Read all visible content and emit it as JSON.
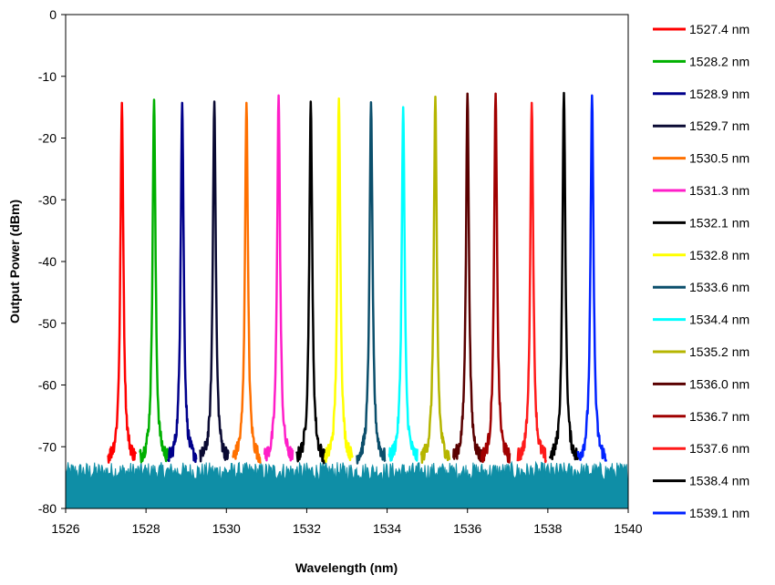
{
  "chart_data": {
    "type": "line",
    "title": "",
    "xlabel": "Wavelength (nm)",
    "ylabel": "Output Power (dBm)",
    "xlim": [
      1526,
      1540
    ],
    "ylim": [
      -80,
      0
    ],
    "x_ticks": [
      1526,
      1528,
      1530,
      1532,
      1534,
      1536,
      1538,
      1540
    ],
    "x_tick_labels": [
      "1526",
      "1528",
      "1530",
      "1532",
      "1534",
      "1536",
      "1538",
      "1540"
    ],
    "y_ticks": [
      0,
      -10,
      -20,
      -30,
      -40,
      -50,
      -60,
      -70,
      -80
    ],
    "y_tick_labels": [
      "0",
      "-10",
      "-20",
      "-30",
      "-40",
      "-50",
      "-60",
      "-70",
      "-80"
    ],
    "grid": false,
    "legend_position": "right",
    "noise_floor_dbm": -74,
    "noise_floor_color": "#0f8ea6",
    "series": [
      {
        "name": "1527.4 nm",
        "peak_wavelength": 1527.4,
        "peak_power": -14.3,
        "color": "#ff0000"
      },
      {
        "name": "1528.2 nm",
        "peak_wavelength": 1528.2,
        "peak_power": -13.8,
        "color": "#00b000"
      },
      {
        "name": "1528.9 nm",
        "peak_wavelength": 1528.9,
        "peak_power": -14.3,
        "color": "#00008b"
      },
      {
        "name": "1529.7 nm",
        "peak_wavelength": 1529.7,
        "peak_power": -14.1,
        "color": "#0a0a33"
      },
      {
        "name": "1530.5 nm",
        "peak_wavelength": 1530.5,
        "peak_power": -14.3,
        "color": "#ff7000"
      },
      {
        "name": "1531.3 nm",
        "peak_wavelength": 1531.3,
        "peak_power": -13.1,
        "color": "#ff1ec8"
      },
      {
        "name": "1532.1 nm",
        "peak_wavelength": 1532.1,
        "peak_power": -14.1,
        "color": "#000000"
      },
      {
        "name": "1532.8 nm",
        "peak_wavelength": 1532.8,
        "peak_power": -13.6,
        "color": "#ffff00"
      },
      {
        "name": "1533.6 nm",
        "peak_wavelength": 1533.6,
        "peak_power": -14.2,
        "color": "#0b4f6c"
      },
      {
        "name": "1534.4 nm",
        "peak_wavelength": 1534.4,
        "peak_power": -15.0,
        "color": "#00ffff"
      },
      {
        "name": "1535.2 nm",
        "peak_wavelength": 1535.2,
        "peak_power": -13.3,
        "color": "#b5b500"
      },
      {
        "name": "1536.0 nm",
        "peak_wavelength": 1536.0,
        "peak_power": -12.8,
        "color": "#5a0000"
      },
      {
        "name": "1536.7 nm",
        "peak_wavelength": 1536.7,
        "peak_power": -12.8,
        "color": "#a00000"
      },
      {
        "name": "1537.6 nm",
        "peak_wavelength": 1537.6,
        "peak_power": -14.3,
        "color": "#ff1a1a"
      },
      {
        "name": "1538.4 nm",
        "peak_wavelength": 1538.4,
        "peak_power": -12.7,
        "color": "#000000"
      },
      {
        "name": "1539.1 nm",
        "peak_wavelength": 1539.1,
        "peak_power": -13.1,
        "color": "#0022ff"
      }
    ]
  }
}
